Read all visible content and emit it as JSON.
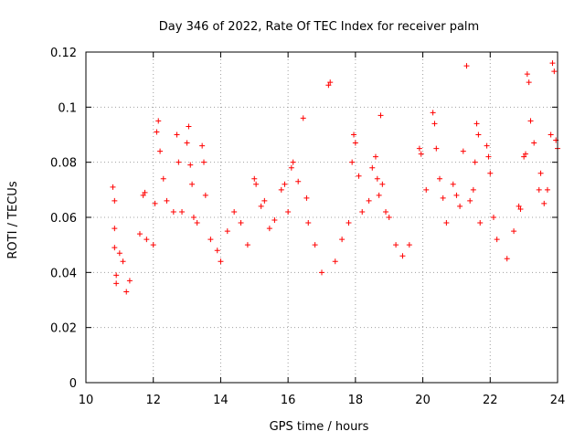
{
  "chart_data": {
    "type": "scatter",
    "title": "Day 346 of 2022, Rate Of TEC Index for receiver palm",
    "xlabel": "GPS time / hours",
    "ylabel": "ROTI / TECUs",
    "xlim": [
      10,
      24
    ],
    "ylim": [
      0,
      0.12
    ],
    "x_ticks": [
      10,
      12,
      14,
      16,
      18,
      20,
      22,
      24
    ],
    "x_tick_labels": [
      "10",
      "12",
      "14",
      "16",
      "18",
      "20",
      "22",
      "24"
    ],
    "y_ticks": [
      0,
      0.02,
      0.04,
      0.06,
      0.08,
      0.1,
      0.12
    ],
    "y_tick_labels": [
      "0",
      "0.02",
      "0.04",
      "0.06",
      "0.08",
      "0.1",
      "0.12"
    ],
    "grid": true,
    "marker": "plus",
    "color": "#ff0000",
    "series": [
      {
        "points": [
          [
            10.8,
            0.071
          ],
          [
            10.85,
            0.066
          ],
          [
            10.85,
            0.056
          ],
          [
            10.85,
            0.049
          ],
          [
            10.9,
            0.039
          ],
          [
            10.9,
            0.036
          ],
          [
            11.0,
            0.047
          ],
          [
            11.1,
            0.044
          ],
          [
            11.2,
            0.033
          ],
          [
            11.3,
            0.037
          ],
          [
            11.6,
            0.054
          ],
          [
            11.7,
            0.068
          ],
          [
            11.75,
            0.069
          ],
          [
            11.8,
            0.052
          ],
          [
            12.0,
            0.05
          ],
          [
            12.05,
            0.065
          ],
          [
            12.1,
            0.091
          ],
          [
            12.15,
            0.095
          ],
          [
            12.2,
            0.084
          ],
          [
            12.3,
            0.074
          ],
          [
            12.4,
            0.066
          ],
          [
            12.6,
            0.062
          ],
          [
            12.7,
            0.09
          ],
          [
            12.75,
            0.08
          ],
          [
            12.85,
            0.062
          ],
          [
            13.0,
            0.087
          ],
          [
            13.05,
            0.093
          ],
          [
            13.1,
            0.079
          ],
          [
            13.15,
            0.072
          ],
          [
            13.2,
            0.06
          ],
          [
            13.3,
            0.058
          ],
          [
            13.45,
            0.086
          ],
          [
            13.5,
            0.08
          ],
          [
            13.55,
            0.068
          ],
          [
            13.7,
            0.052
          ],
          [
            13.9,
            0.048
          ],
          [
            14.0,
            0.044
          ],
          [
            14.2,
            0.055
          ],
          [
            14.4,
            0.062
          ],
          [
            14.6,
            0.058
          ],
          [
            14.8,
            0.05
          ],
          [
            15.0,
            0.074
          ],
          [
            15.05,
            0.072
          ],
          [
            15.2,
            0.064
          ],
          [
            15.3,
            0.066
          ],
          [
            15.45,
            0.056
          ],
          [
            15.6,
            0.059
          ],
          [
            15.8,
            0.07
          ],
          [
            15.9,
            0.072
          ],
          [
            16.0,
            0.062
          ],
          [
            16.1,
            0.078
          ],
          [
            16.15,
            0.08
          ],
          [
            16.3,
            0.073
          ],
          [
            16.45,
            0.096
          ],
          [
            16.55,
            0.067
          ],
          [
            16.6,
            0.058
          ],
          [
            16.8,
            0.05
          ],
          [
            17.0,
            0.04
          ],
          [
            17.2,
            0.108
          ],
          [
            17.25,
            0.109
          ],
          [
            17.4,
            0.044
          ],
          [
            17.6,
            0.052
          ],
          [
            17.8,
            0.058
          ],
          [
            17.9,
            0.08
          ],
          [
            17.95,
            0.09
          ],
          [
            18.0,
            0.087
          ],
          [
            18.1,
            0.075
          ],
          [
            18.2,
            0.062
          ],
          [
            18.4,
            0.066
          ],
          [
            18.5,
            0.078
          ],
          [
            18.6,
            0.082
          ],
          [
            18.65,
            0.074
          ],
          [
            18.7,
            0.068
          ],
          [
            18.75,
            0.097
          ],
          [
            18.8,
            0.072
          ],
          [
            18.9,
            0.062
          ],
          [
            19.0,
            0.06
          ],
          [
            19.2,
            0.05
          ],
          [
            19.4,
            0.046
          ],
          [
            19.6,
            0.05
          ],
          [
            19.9,
            0.085
          ],
          [
            19.95,
            0.083
          ],
          [
            20.1,
            0.07
          ],
          [
            20.3,
            0.098
          ],
          [
            20.35,
            0.094
          ],
          [
            20.4,
            0.085
          ],
          [
            20.5,
            0.074
          ],
          [
            20.6,
            0.067
          ],
          [
            20.7,
            0.058
          ],
          [
            20.9,
            0.072
          ],
          [
            21.0,
            0.068
          ],
          [
            21.1,
            0.064
          ],
          [
            21.2,
            0.084
          ],
          [
            21.3,
            0.115
          ],
          [
            21.4,
            0.066
          ],
          [
            21.5,
            0.07
          ],
          [
            21.55,
            0.08
          ],
          [
            21.6,
            0.094
          ],
          [
            21.65,
            0.09
          ],
          [
            21.7,
            0.058
          ],
          [
            21.9,
            0.086
          ],
          [
            21.95,
            0.082
          ],
          [
            22.0,
            0.076
          ],
          [
            22.1,
            0.06
          ],
          [
            22.2,
            0.052
          ],
          [
            22.5,
            0.045
          ],
          [
            22.7,
            0.055
          ],
          [
            22.85,
            0.064
          ],
          [
            22.9,
            0.063
          ],
          [
            23.0,
            0.082
          ],
          [
            23.05,
            0.083
          ],
          [
            23.1,
            0.112
          ],
          [
            23.15,
            0.109
          ],
          [
            23.2,
            0.095
          ],
          [
            23.3,
            0.087
          ],
          [
            23.45,
            0.07
          ],
          [
            23.5,
            0.076
          ],
          [
            23.6,
            0.065
          ],
          [
            23.7,
            0.07
          ],
          [
            23.8,
            0.09
          ],
          [
            23.85,
            0.116
          ],
          [
            23.9,
            0.113
          ],
          [
            23.95,
            0.088
          ],
          [
            24.0,
            0.085
          ]
        ]
      }
    ]
  }
}
